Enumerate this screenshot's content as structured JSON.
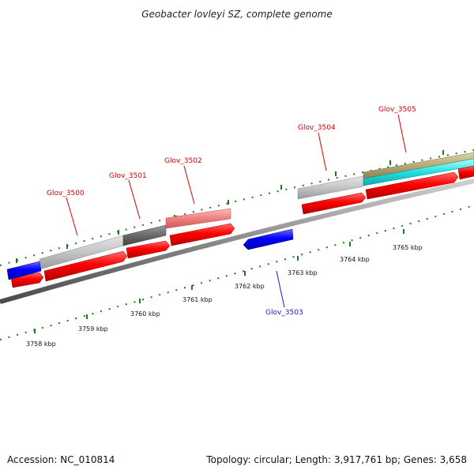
{
  "title": "Geobacter lovleyi SZ, complete genome",
  "footer": {
    "accession": "Accession: NC_010814",
    "summary": "Topology: circular; Length: 3,917,761 bp; Genes: 3,658"
  },
  "scale": {
    "unit": "kbp",
    "labels": [
      "3758 kbp",
      "3759 kbp",
      "3760 kbp",
      "3761 kbp",
      "3762 kbp",
      "3763 kbp",
      "3764 kbp",
      "3765 kbp"
    ]
  },
  "genes": [
    {
      "id": "Glov_3500",
      "label": "Glov_3500",
      "color": "#d40000"
    },
    {
      "id": "Glov_3501",
      "label": "Glov_3501",
      "color": "#d40000"
    },
    {
      "id": "Glov_3502",
      "label": "Glov_3502",
      "color": "#d40000"
    },
    {
      "id": "Glov_3503",
      "label": "Glov_3503",
      "color": "#1a1acc"
    },
    {
      "id": "Glov_3504",
      "label": "Glov_3504",
      "color": "#d40000"
    },
    {
      "id": "Glov_3505",
      "label": "Glov_3505",
      "color": "#d40000"
    }
  ],
  "colors": {
    "forward_cds": "#ff0000",
    "reverse_cds": "#0000ff",
    "backbone": "#8a8a8a",
    "ticks": "#1f7a1f",
    "feature_gray": "#bdbdbd",
    "feature_dark": "#6a6a6a",
    "feature_pink": "#f08a8a",
    "feature_cyan": "#22e0e0",
    "feature_olive": "#b5aa78"
  }
}
